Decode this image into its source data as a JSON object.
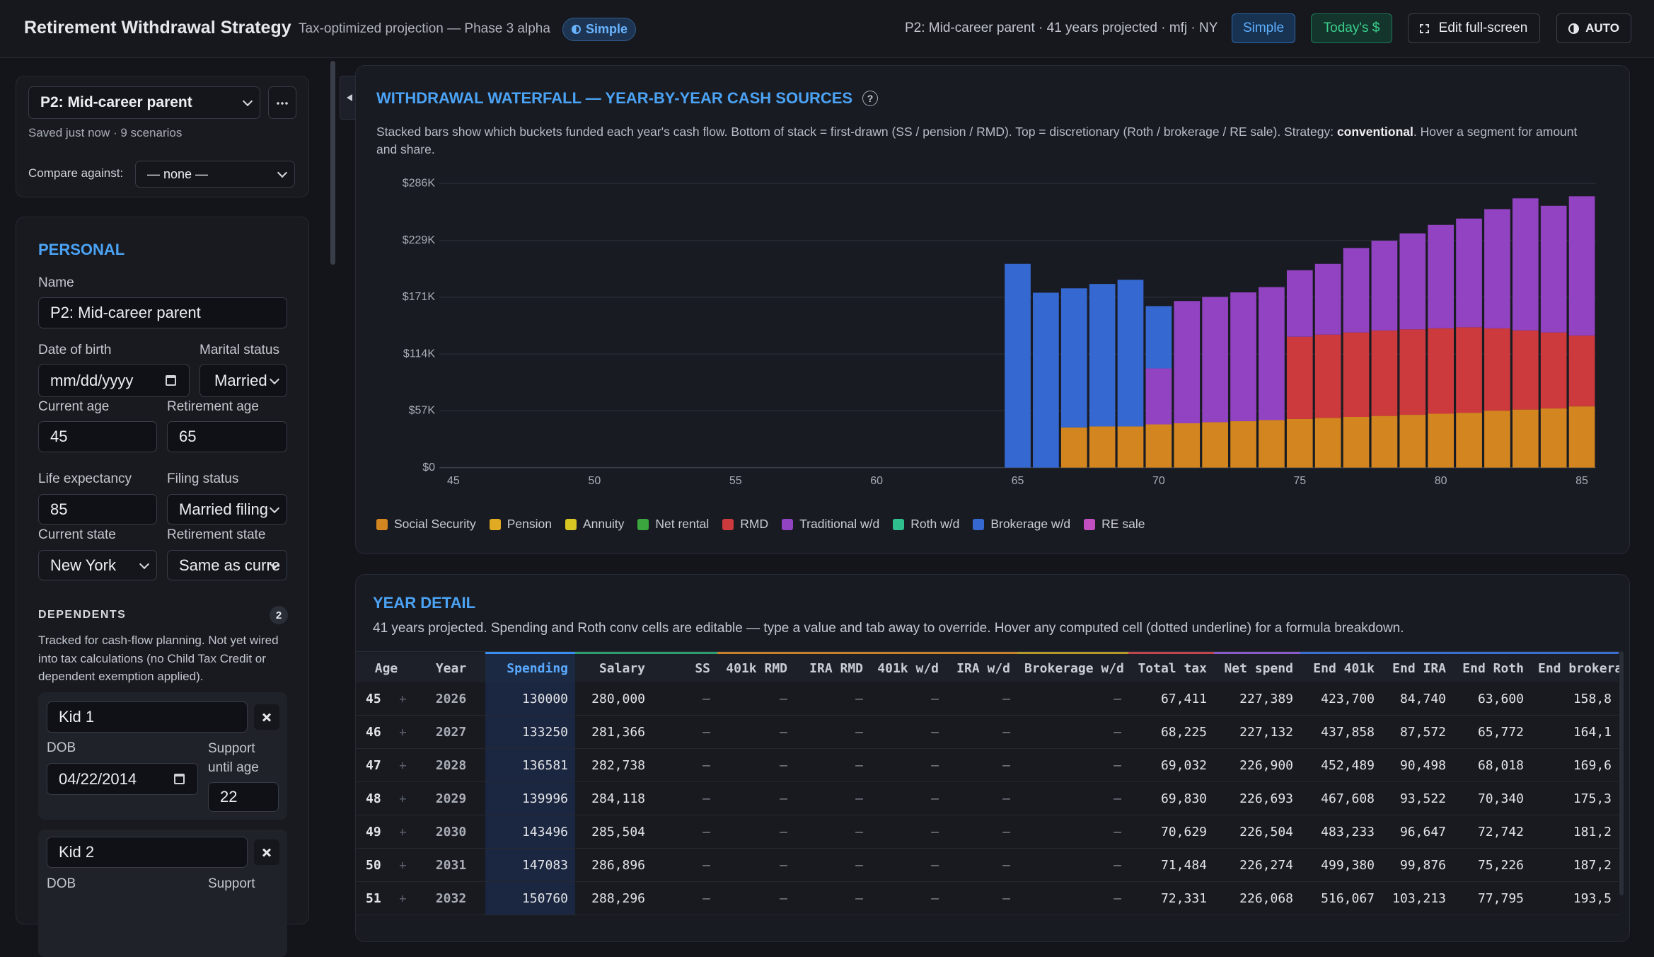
{
  "header": {
    "title": "Retirement Withdrawal Strategy",
    "subtitle": "Tax-optimized projection — Phase 3 alpha",
    "mode_badge": "Simple",
    "context": "P2: Mid-career parent · 41 years projected · mfj · NY",
    "buttons": [
      "Simple",
      "Today's $",
      "Edit full-screen",
      "AUTO"
    ]
  },
  "sidebar": {
    "scenario": "P2: Mid-career parent",
    "status": "Saved just now · 9 scenarios",
    "compare_label": "Compare against:",
    "compare_value": "— none —",
    "personal": {
      "heading": "PERSONAL",
      "name_label": "Name",
      "name": "P2: Mid-career parent",
      "dob_label": "Date of birth",
      "dob": "mm/dd/yyyy",
      "marital_label": "Marital status",
      "marital": "Married",
      "current_age_label": "Current age",
      "current_age": "45",
      "retirement_age_label": "Retirement age",
      "retirement_age": "65",
      "life_label": "Life expectancy",
      "life": "85",
      "filing_label": "Filing status",
      "filing": "Married filing",
      "state_label": "Current state",
      "state": "New York",
      "ret_state_label": "Retirement state",
      "ret_state": "Same as curre"
    },
    "dependents": {
      "heading": "DEPENDENTS",
      "count": "2",
      "note": "Tracked for cash-flow planning. Not yet wired into tax calculations (no Child Tax Credit or dependent exemption applied).",
      "kids": [
        {
          "name": "Kid 1",
          "dob_label": "DOB",
          "dob": "04/22/2014",
          "support_label": "Support until age",
          "support": "22"
        },
        {
          "name": "Kid 2",
          "dob_label": "DOB",
          "support_label": "Support"
        }
      ]
    }
  },
  "chart_data": {
    "type": "bar",
    "stacked": true,
    "grid": true,
    "title": "WITHDRAWAL WATERFALL — YEAR-BY-YEAR CASH SOURCES",
    "help_icon": "?",
    "description": [
      "Stacked bars show which buckets funded each year's cash flow. Bottom of stack = first-drawn (SS / pension / RMD). Top = discretionary (Roth / brokerage / RE sale). Strategy: ",
      "conventional",
      ". Hover a segment for amount and share."
    ],
    "x": [
      65,
      66,
      67,
      68,
      69,
      70,
      71,
      72,
      73,
      74,
      75,
      76,
      77,
      78,
      79,
      80,
      81,
      82,
      83,
      84,
      85
    ],
    "xlim": [
      44.5,
      85.5
    ],
    "xticks": [
      45,
      50,
      55,
      60,
      65,
      70,
      75,
      80,
      85
    ],
    "ylim": [
      0,
      285750
    ],
    "yticks": [
      {
        "value": 0,
        "label": "$0"
      },
      {
        "value": 57150,
        "label": "$57K"
      },
      {
        "value": 114300,
        "label": "$114K"
      },
      {
        "value": 171450,
        "label": "$171K"
      },
      {
        "value": 228600,
        "label": "$229K"
      },
      {
        "value": 285750,
        "label": "$286K"
      }
    ],
    "series": [
      {
        "name": "Social Security",
        "color": "#d3861f",
        "values": [
          null,
          null,
          40400,
          41400,
          41400,
          43500,
          44600,
          45700,
          46700,
          47800,
          48900,
          49900,
          51000,
          52000,
          53100,
          54200,
          55200,
          57300,
          58400,
          59500,
          61600
        ]
      },
      {
        "name": "Pension",
        "color": "#e0ab22",
        "values": [
          null,
          null,
          null,
          null,
          null,
          null,
          null,
          null,
          null,
          null,
          null,
          null,
          null,
          null,
          null,
          null,
          null,
          null,
          null,
          null,
          null
        ]
      },
      {
        "name": "Annuity",
        "color": "#d8c623",
        "values": [
          null,
          null,
          null,
          null,
          null,
          null,
          null,
          null,
          null,
          null,
          null,
          null,
          null,
          null,
          null,
          null,
          null,
          null,
          null,
          null,
          null
        ]
      },
      {
        "name": "Net rental",
        "color": "#3aa63d",
        "values": [
          null,
          null,
          null,
          null,
          null,
          null,
          null,
          null,
          null,
          null,
          null,
          null,
          null,
          null,
          null,
          null,
          null,
          null,
          null,
          null,
          null
        ]
      },
      {
        "name": "RMD",
        "color": "#cc3a3d",
        "values": [
          null,
          null,
          null,
          null,
          null,
          null,
          null,
          null,
          null,
          null,
          82800,
          83900,
          85000,
          86000,
          86000,
          86000,
          86000,
          82800,
          79700,
          76500,
          71200
        ]
      },
      {
        "name": "Traditional w/d",
        "color": "#9143c2",
        "values": [
          null,
          null,
          null,
          null,
          null,
          56300,
          123000,
          126000,
          129600,
          133800,
          66900,
          71200,
          85000,
          90300,
          96600,
          104000,
          109400,
          120000,
          132800,
          127400,
          140200
        ]
      },
      {
        "name": "Roth w/d",
        "color": "#2fbf8f",
        "values": [
          null,
          null,
          null,
          null,
          null,
          null,
          null,
          null,
          null,
          null,
          null,
          null,
          null,
          null,
          null,
          null,
          null,
          null,
          null,
          null,
          null
        ]
      },
      {
        "name": "Brokerage w/d",
        "color": "#3568d0",
        "values": [
          205000,
          176000,
          140000,
          143400,
          147600,
          62700,
          null,
          null,
          null,
          null,
          null,
          null,
          null,
          null,
          null,
          null,
          null,
          null,
          null,
          null,
          null
        ]
      },
      {
        "name": "RE sale",
        "color": "#c24fbf",
        "values": [
          null,
          null,
          null,
          null,
          null,
          null,
          null,
          null,
          null,
          null,
          null,
          null,
          null,
          null,
          null,
          null,
          null,
          null,
          null,
          null,
          null
        ]
      }
    ]
  },
  "year_detail": {
    "title": "YEAR DETAIL",
    "description": "41 years projected. Spending and Roth conv cells are editable — type a value and tab away to override. Hover any computed cell (dotted underline) for a formula breakdown.",
    "columns": [
      "Age",
      "Year",
      "Spending",
      "Salary",
      "SS",
      "401k RMD",
      "IRA RMD",
      "401k w/d",
      "IRA w/d",
      "Brokerage w/d",
      "Total tax",
      "Net spend",
      "End 401k",
      "End IRA",
      "End Roth",
      "End brokera"
    ],
    "rows": [
      [
        "45",
        "2026",
        "130000",
        "280,000",
        "—",
        "—",
        "—",
        "—",
        "—",
        "—",
        "67,411",
        "227,389",
        "423,700",
        "84,740",
        "63,600",
        "158,8"
      ],
      [
        "46",
        "2027",
        "133250",
        "281,366",
        "—",
        "—",
        "—",
        "—",
        "—",
        "—",
        "68,225",
        "227,132",
        "437,858",
        "87,572",
        "65,772",
        "164,1"
      ],
      [
        "47",
        "2028",
        "136581",
        "282,738",
        "—",
        "—",
        "—",
        "—",
        "—",
        "—",
        "69,032",
        "226,900",
        "452,489",
        "90,498",
        "68,018",
        "169,6"
      ],
      [
        "48",
        "2029",
        "139996",
        "284,118",
        "—",
        "—",
        "—",
        "—",
        "—",
        "—",
        "69,830",
        "226,693",
        "467,608",
        "93,522",
        "70,340",
        "175,3"
      ],
      [
        "49",
        "2030",
        "143496",
        "285,504",
        "—",
        "—",
        "—",
        "—",
        "—",
        "—",
        "70,629",
        "226,504",
        "483,233",
        "96,647",
        "72,742",
        "181,2"
      ],
      [
        "50",
        "2031",
        "147083",
        "286,896",
        "—",
        "—",
        "—",
        "—",
        "—",
        "—",
        "71,484",
        "226,274",
        "499,380",
        "99,876",
        "75,226",
        "187,2"
      ],
      [
        "51",
        "2032",
        "150760",
        "288,296",
        "—",
        "—",
        "—",
        "—",
        "—",
        "—",
        "72,331",
        "226,068",
        "516,067",
        "103,213",
        "77,795",
        "193,5"
      ]
    ]
  }
}
